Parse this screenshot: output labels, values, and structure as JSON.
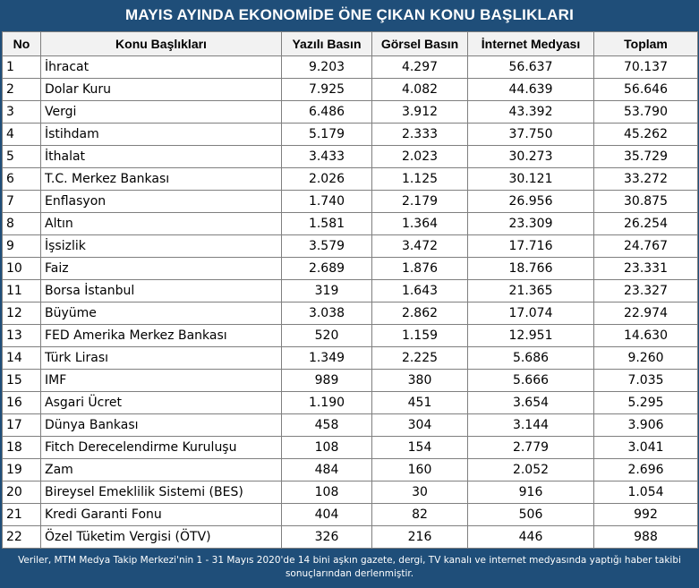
{
  "title": "MAYIS AYINDA EKONOMİDE ÖNE ÇIKAN KONU BAŞLIKLARI",
  "headers": [
    "No",
    "Konu Başlıkları",
    "Yazılı Basın",
    "Görsel Basın",
    "İnternet Medyası",
    "Toplam"
  ],
  "rows": [
    [
      "1",
      "İhracat",
      "9.203",
      "4.297",
      "56.637",
      "70.137"
    ],
    [
      "2",
      "Dolar Kuru",
      "7.925",
      "4.082",
      "44.639",
      "56.646"
    ],
    [
      "3",
      "Vergi",
      "6.486",
      "3.912",
      "43.392",
      "53.790"
    ],
    [
      "4",
      "İstihdam",
      "5.179",
      "2.333",
      "37.750",
      "45.262"
    ],
    [
      "5",
      "İthalat",
      "3.433",
      "2.023",
      "30.273",
      "35.729"
    ],
    [
      "6",
      "T.C. Merkez Bankası",
      "2.026",
      "1.125",
      "30.121",
      "33.272"
    ],
    [
      "7",
      "Enflasyon",
      "1.740",
      "2.179",
      "26.956",
      "30.875"
    ],
    [
      "8",
      "Altın",
      "1.581",
      "1.364",
      "23.309",
      "26.254"
    ],
    [
      "9",
      "İşsizlik",
      "3.579",
      "3.472",
      "17.716",
      "24.767"
    ],
    [
      "10",
      "Faiz",
      "2.689",
      "1.876",
      "18.766",
      "23.331"
    ],
    [
      "11",
      "Borsa İstanbul",
      "319",
      "1.643",
      "21.365",
      "23.327"
    ],
    [
      "12",
      "Büyüme",
      "3.038",
      "2.862",
      "17.074",
      "22.974"
    ],
    [
      "13",
      "FED Amerika Merkez Bankası",
      "520",
      "1.159",
      "12.951",
      "14.630"
    ],
    [
      "14",
      "Türk Lirası",
      "1.349",
      "2.225",
      "5.686",
      "9.260"
    ],
    [
      "15",
      "IMF",
      "989",
      "380",
      "5.666",
      "7.035"
    ],
    [
      "16",
      "Asgari Ücret",
      "1.190",
      "451",
      "3.654",
      "5.295"
    ],
    [
      "17",
      "Dünya Bankası",
      "458",
      "304",
      "3.144",
      "3.906"
    ],
    [
      "18",
      "Fitch Derecelendirme Kuruluşu",
      "108",
      "154",
      "2.779",
      "3.041"
    ],
    [
      "19",
      "Zam",
      "484",
      "160",
      "2.052",
      "2.696"
    ],
    [
      "20",
      "Bireysel Emeklilik Sistemi (BES)",
      "108",
      "30",
      "916",
      "1.054"
    ],
    [
      "21",
      "Kredi Garanti Fonu",
      "404",
      "82",
      "506",
      "992"
    ],
    [
      "22",
      "Özel Tüketim Vergisi (ÖTV)",
      "326",
      "216",
      "446",
      "988"
    ]
  ],
  "footer": "Veriler, MTM Medya Takip Merkezi'nin 1 - 31 Mayıs 2020'de 14 bini aşkın gazete, dergi, TV kanalı ve internet medyasında yaptığı haber takibi sonuçlarından derlenmiştir."
}
